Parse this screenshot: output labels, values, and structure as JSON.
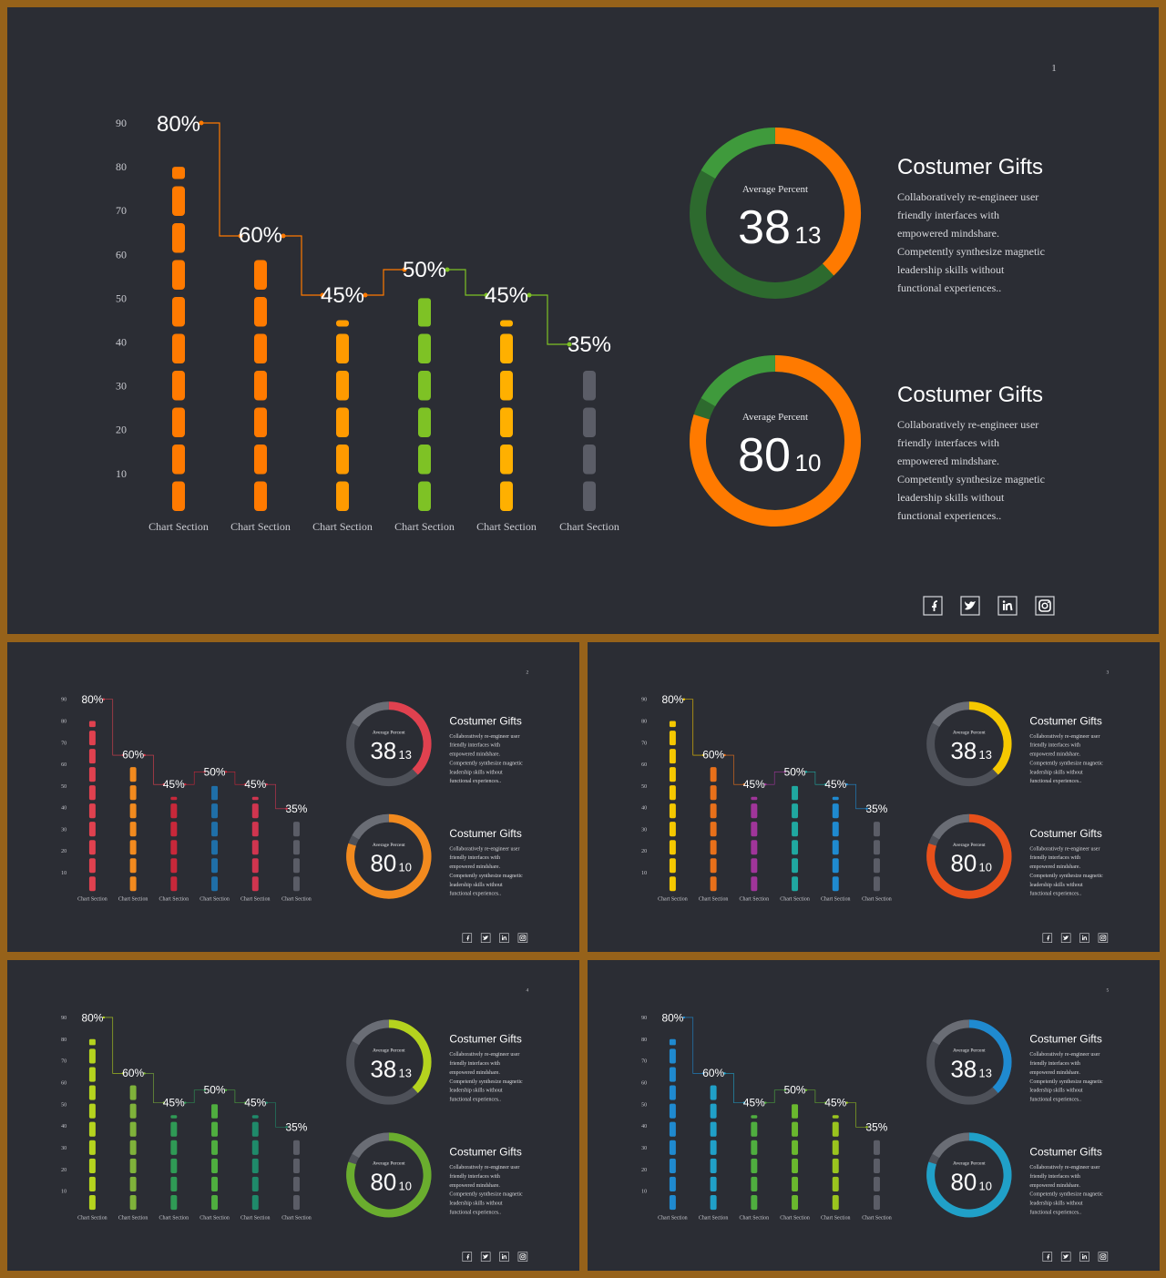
{
  "common": {
    "axis_ticks": [
      "90",
      "80",
      "70",
      "60",
      "50",
      "40",
      "30",
      "20",
      "10"
    ],
    "category_label": "Chart Section",
    "bar_labels": [
      "80%",
      "60%",
      "45%",
      "50%",
      "45%",
      "35%"
    ],
    "donuts": [
      {
        "caption": "Average Percent",
        "big": "38",
        "small": "13"
      },
      {
        "caption": "Average Percent",
        "big": "80",
        "small": "10"
      }
    ],
    "text_block": {
      "title": "Costumer Gifts",
      "lines": [
        "Collaboratively re-engineer user",
        "friendly interfaces with",
        "empowered mindshare.",
        "Competently synthesize magnetic",
        "leadership skills without",
        "functional experiences.."
      ]
    },
    "social": [
      "facebook-icon",
      "twitter-icon",
      "linkedin-icon",
      "instagram-icon"
    ]
  },
  "chart_data": [
    {
      "type": "bar",
      "slide": "1",
      "categories": [
        "Chart Section",
        "Chart Section",
        "Chart Section",
        "Chart Section",
        "Chart Section",
        "Chart Section"
      ],
      "values": [
        80,
        60,
        45,
        50,
        45,
        35
      ],
      "labels": [
        "80%",
        "60%",
        "45%",
        "50%",
        "45%",
        "35%"
      ],
      "ylim": [
        0,
        90
      ]
    },
    {
      "type": "bar",
      "slide": "2",
      "categories": [
        "Chart Section",
        "Chart Section",
        "Chart Section",
        "Chart Section",
        "Chart Section",
        "Chart Section"
      ],
      "values": [
        80,
        60,
        45,
        50,
        45,
        35
      ],
      "labels": [
        "80%",
        "60%",
        "45%",
        "50%",
        "45%",
        "35%"
      ],
      "ylim": [
        0,
        90
      ]
    },
    {
      "type": "bar",
      "slide": "3",
      "categories": [
        "Chart Section",
        "Chart Section",
        "Chart Section",
        "Chart Section",
        "Chart Section",
        "Chart Section"
      ],
      "values": [
        80,
        60,
        45,
        50,
        45,
        35
      ],
      "labels": [
        "80%",
        "60%",
        "45%",
        "50%",
        "45%",
        "35%"
      ],
      "ylim": [
        0,
        90
      ]
    },
    {
      "type": "bar",
      "slide": "4",
      "categories": [
        "Chart Section",
        "Chart Section",
        "Chart Section",
        "Chart Section",
        "Chart Section",
        "Chart Section"
      ],
      "values": [
        80,
        60,
        45,
        50,
        45,
        35
      ],
      "labels": [
        "80%",
        "60%",
        "45%",
        "50%",
        "45%",
        "35%"
      ],
      "ylim": [
        0,
        90
      ]
    },
    {
      "type": "bar",
      "slide": "5",
      "categories": [
        "Chart Section",
        "Chart Section",
        "Chart Section",
        "Chart Section",
        "Chart Section",
        "Chart Section"
      ],
      "values": [
        80,
        60,
        45,
        50,
        45,
        35
      ],
      "labels": [
        "80%",
        "60%",
        "45%",
        "50%",
        "45%",
        "35%"
      ],
      "ylim": [
        0,
        90
      ]
    }
  ],
  "slides": [
    {
      "page_number": "1",
      "bar_colors": [
        "#ff7a00",
        "#ff7a00",
        "#ff9a00",
        "#7ec225",
        "#ffb000",
        "#5b5d67"
      ],
      "step_colors": [
        "#ff7a00",
        "#ff7a00",
        "#ff7a00",
        "#7ec225",
        "#7ec225",
        "#3ea23a"
      ],
      "donut_colors": [
        {
          "a": "#ff7a00",
          "b": "#2d6a2e",
          "c": "#3f9a3c"
        },
        {
          "a": "#ff7a00",
          "b": "#2d6a2e",
          "c": "#3f9a3c"
        }
      ],
      "donut_fractions": [
        0.38,
        0.8
      ]
    },
    {
      "page_number": "2",
      "bar_colors": [
        "#e0414f",
        "#f28a1e",
        "#c8283a",
        "#1f6fa8",
        "#d0354f",
        "#5b5d67"
      ],
      "step_colors": [
        "#e0414f",
        "#e0414f",
        "#c8283a",
        "#c8283a",
        "#d0354f",
        "#d0354f"
      ],
      "donut_colors": [
        {
          "a": "#e0414f",
          "b": "#4e5159",
          "c": "#6a6d75"
        },
        {
          "a": "#f28a1e",
          "b": "#4e5159",
          "c": "#6a6d75"
        }
      ],
      "donut_fractions": [
        0.38,
        0.8
      ]
    },
    {
      "page_number": "3",
      "bar_colors": [
        "#f5c800",
        "#e8701a",
        "#a0359a",
        "#20a8a0",
        "#1f8ad0",
        "#5b5d67"
      ],
      "step_colors": [
        "#f5c800",
        "#e8701a",
        "#a0359a",
        "#20a8a0",
        "#1f8ad0",
        "#5b5d67"
      ],
      "donut_colors": [
        {
          "a": "#f5c800",
          "b": "#4e5159",
          "c": "#6a6d75"
        },
        {
          "a": "#e8501a",
          "b": "#4e5159",
          "c": "#6a6d75"
        }
      ],
      "donut_fractions": [
        0.38,
        0.8
      ]
    },
    {
      "page_number": "4",
      "bar_colors": [
        "#b5d31e",
        "#7fb23a",
        "#2f9a55",
        "#4fae3f",
        "#1f8a6a",
        "#5b5d67"
      ],
      "step_colors": [
        "#b5d31e",
        "#7fb23a",
        "#2f9a55",
        "#4fae3f",
        "#1f8a6a",
        "#5b5d67"
      ],
      "donut_colors": [
        {
          "a": "#b5d31e",
          "b": "#4e5159",
          "c": "#6a6d75"
        },
        {
          "a": "#6aad2e",
          "b": "#4e5159",
          "c": "#6a6d75"
        }
      ],
      "donut_fractions": [
        0.38,
        0.8
      ]
    },
    {
      "page_number": "5",
      "bar_colors": [
        "#1f8ad0",
        "#20a0c8",
        "#4fae3f",
        "#6ab82e",
        "#9ac41e",
        "#5b5d67"
      ],
      "step_colors": [
        "#1f8ad0",
        "#20a0c8",
        "#4fae3f",
        "#6ab82e",
        "#9ac41e",
        "#5b5d67"
      ],
      "donut_colors": [
        {
          "a": "#1f8ad0",
          "b": "#4e5159",
          "c": "#6a6d75"
        },
        {
          "a": "#20a0c8",
          "b": "#4e5159",
          "c": "#6a6d75"
        }
      ],
      "donut_fractions": [
        0.38,
        0.8
      ]
    }
  ]
}
